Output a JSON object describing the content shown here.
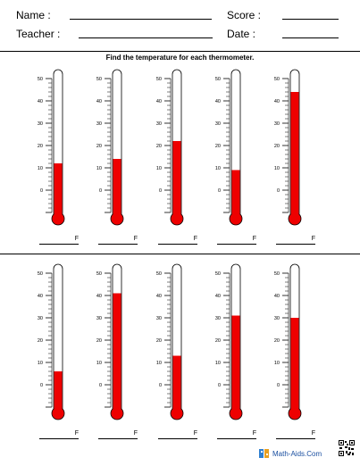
{
  "header": {
    "name_label": "Name :",
    "score_label": "Score :",
    "teacher_label": "Teacher :",
    "date_label": "Date :"
  },
  "instruction": "Find the temperature for each thermometer.",
  "thermometer": {
    "scale_min": -10,
    "scale_max": 50,
    "tick_labels": [
      "50",
      "40",
      "30",
      "20",
      "10",
      "0"
    ],
    "unit": "F"
  },
  "rows": [
    {
      "readings": [
        12,
        14,
        22,
        9,
        44
      ]
    },
    {
      "readings": [
        6,
        41,
        13,
        31,
        30
      ]
    }
  ],
  "colors": {
    "mercury": "#ee0000",
    "accent_blue": "#1a4fa0"
  },
  "footer": {
    "logo_text": "Math-Aids.Com",
    "icons": [
      "book-logo-icon",
      "qr-code-icon"
    ]
  }
}
